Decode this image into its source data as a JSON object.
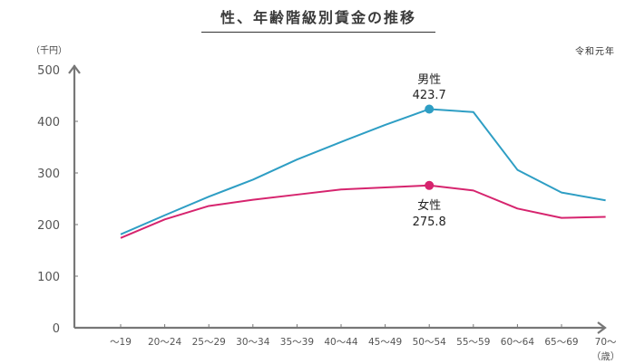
{
  "title": "性、年齢階級別賃金の推移",
  "unit_label": "（千円）",
  "era_label": "令和元年",
  "x_unit_label": "（歳）",
  "colors": {
    "male": "#2e9ec4",
    "female": "#d6246e",
    "axis": "#777777"
  },
  "annotations": {
    "male": {
      "label": "男性",
      "value": "423.7"
    },
    "female": {
      "label": "女性",
      "value": "275.8"
    }
  },
  "chart_data": {
    "type": "line",
    "title": "性、年齢階級別賃金の推移",
    "xlabel": "（歳）",
    "ylabel": "（千円）",
    "ylim": [
      0,
      500
    ],
    "yticks": [
      0,
      100,
      200,
      300,
      400,
      500
    ],
    "grid": false,
    "legend_position": "inline annotations at 50～54",
    "categories": [
      "～19",
      "20～24",
      "25～29",
      "30～34",
      "35～39",
      "40～44",
      "45～49",
      "50～54",
      "55～59",
      "60～64",
      "65～69",
      "70～"
    ],
    "series": [
      {
        "name": "男性",
        "color": "#2e9ec4",
        "values": [
          181,
          218,
          254,
          287,
          326,
          360,
          393,
          423.7,
          418,
          306,
          262,
          247
        ]
      },
      {
        "name": "女性",
        "color": "#d6246e",
        "values": [
          174,
          210,
          236,
          248,
          258,
          268,
          272,
          275.8,
          266,
          231,
          213,
          215
        ]
      }
    ],
    "annotations": [
      {
        "series": "男性",
        "category": "50～54",
        "text": "男性 423.7"
      },
      {
        "series": "女性",
        "category": "50～54",
        "text": "女性 275.8"
      }
    ],
    "subtitle": "令和元年"
  }
}
